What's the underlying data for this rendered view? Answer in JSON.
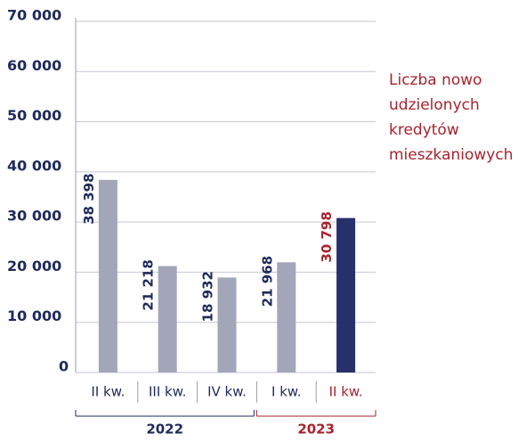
{
  "chart_data": {
    "type": "bar",
    "title": [
      "Liczba nowo",
      "udzielonych",
      "kredytów",
      "mieszkaniowych"
    ],
    "title_color": "#a8232e",
    "categories": [
      "II kw.",
      "III kw.",
      "IV kw.",
      "I kw.",
      "II kw."
    ],
    "values": [
      38398,
      21218,
      18932,
      21968,
      30798
    ],
    "value_labels": [
      "38 398",
      "21 218",
      "18 932",
      "21 968",
      "30 798"
    ],
    "colors": [
      "#a3a6b8",
      "#a3a6b8",
      "#a3a6b8",
      "#a3a6b8",
      "#27306b"
    ],
    "label_colors": [
      "#1f2a5c",
      "#1f2a5c",
      "#1f2a5c",
      "#1f2a5c",
      "#a8232e"
    ],
    "groups": [
      {
        "label": "2022",
        "count": 3,
        "color": "#1f2a5c"
      },
      {
        "label": "2023",
        "count": 2,
        "color": "#a8232e"
      }
    ],
    "ylim": [
      0,
      70000
    ],
    "yticks": [
      0,
      {
        "value": 10000,
        "label": "10 000"
      },
      {
        "value": 20000,
        "label": "20 000"
      },
      {
        "value": 30000,
        "label": "30 000"
      },
      {
        "value": 40000,
        "label": "40 000"
      },
      {
        "value": 50000,
        "label": "50 000"
      },
      {
        "value": 60000,
        "label": "60 000"
      },
      {
        "value": 70000,
        "label": "70 000"
      }
    ],
    "grid": true
  }
}
